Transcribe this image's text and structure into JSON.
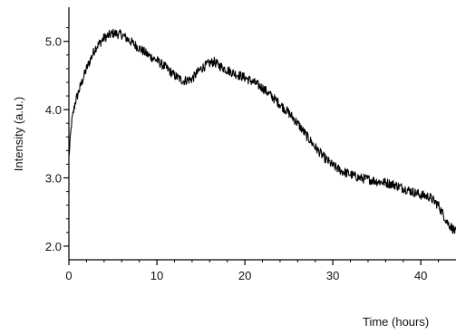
{
  "chart_data": {
    "type": "line",
    "title": "",
    "xlabel": "Time (hours)",
    "ylabel": "Intensity (a.u.)",
    "xlim": [
      0,
      44
    ],
    "ylim": [
      1.8,
      5.5
    ],
    "x_ticks": [
      0,
      10,
      20,
      30,
      40
    ],
    "x_tick_labels": [
      "0",
      "10",
      "20",
      "30",
      "40"
    ],
    "y_ticks": [
      2.0,
      3.0,
      4.0,
      5.0
    ],
    "y_tick_labels": [
      "2.0",
      "3.0",
      "4.0",
      "5.0"
    ],
    "grid": false,
    "legend": "none",
    "line_color": "#000000",
    "series": [
      {
        "x": [
          0,
          0.3,
          0.7,
          1.2,
          2,
          3,
          4,
          5,
          6,
          7,
          8,
          9,
          10,
          11,
          12,
          13,
          14,
          15,
          16,
          16.5,
          17,
          18,
          19,
          20,
          21,
          22,
          23,
          24,
          25,
          26,
          27,
          28,
          29,
          30,
          31,
          32,
          33,
          34,
          35,
          36,
          37,
          38,
          39,
          40,
          41,
          42,
          43,
          44
        ],
        "y": [
          3.3,
          3.8,
          4.1,
          4.3,
          4.6,
          4.9,
          5.05,
          5.12,
          5.1,
          5.0,
          4.9,
          4.8,
          4.72,
          4.62,
          4.5,
          4.42,
          4.45,
          4.6,
          4.68,
          4.7,
          4.65,
          4.58,
          4.52,
          4.47,
          4.4,
          4.32,
          4.2,
          4.08,
          3.95,
          3.8,
          3.62,
          3.45,
          3.3,
          3.18,
          3.1,
          3.05,
          3.0,
          2.98,
          2.95,
          2.93,
          2.9,
          2.85,
          2.8,
          2.75,
          2.72,
          2.6,
          2.35,
          2.2
        ]
      }
    ]
  }
}
